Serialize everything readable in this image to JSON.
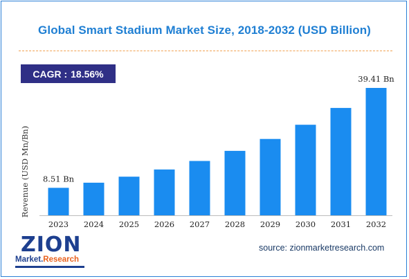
{
  "header": {
    "title": "Global Smart Stadium Market Size, 2018-2032 (USD Billion)"
  },
  "cagr": {
    "label": "CAGR :",
    "value": "18.56%"
  },
  "chart_data": {
    "type": "bar",
    "categories": [
      "2023",
      "2024",
      "2025",
      "2026",
      "2027",
      "2028",
      "2029",
      "2030",
      "2031",
      "2032"
    ],
    "values": [
      8.51,
      10.09,
      11.96,
      14.18,
      16.81,
      19.93,
      23.63,
      28.01,
      33.21,
      39.41
    ],
    "data_labels": [
      {
        "index": 0,
        "text": "8.51 Bn"
      },
      {
        "index": 9,
        "text": "39.41 Bn"
      }
    ],
    "ylabel": "Revenue (USD Mn/Bn)",
    "ylim": [
      0,
      42
    ],
    "bar_color": "#1a8cf0",
    "axis_color": "#bbbbbb",
    "grid": false
  },
  "footer": {
    "source": "source: zionmarketresearch.com",
    "logo_text": "ZION",
    "logo_sub_1": "Market",
    "logo_sub_2": "Research"
  }
}
